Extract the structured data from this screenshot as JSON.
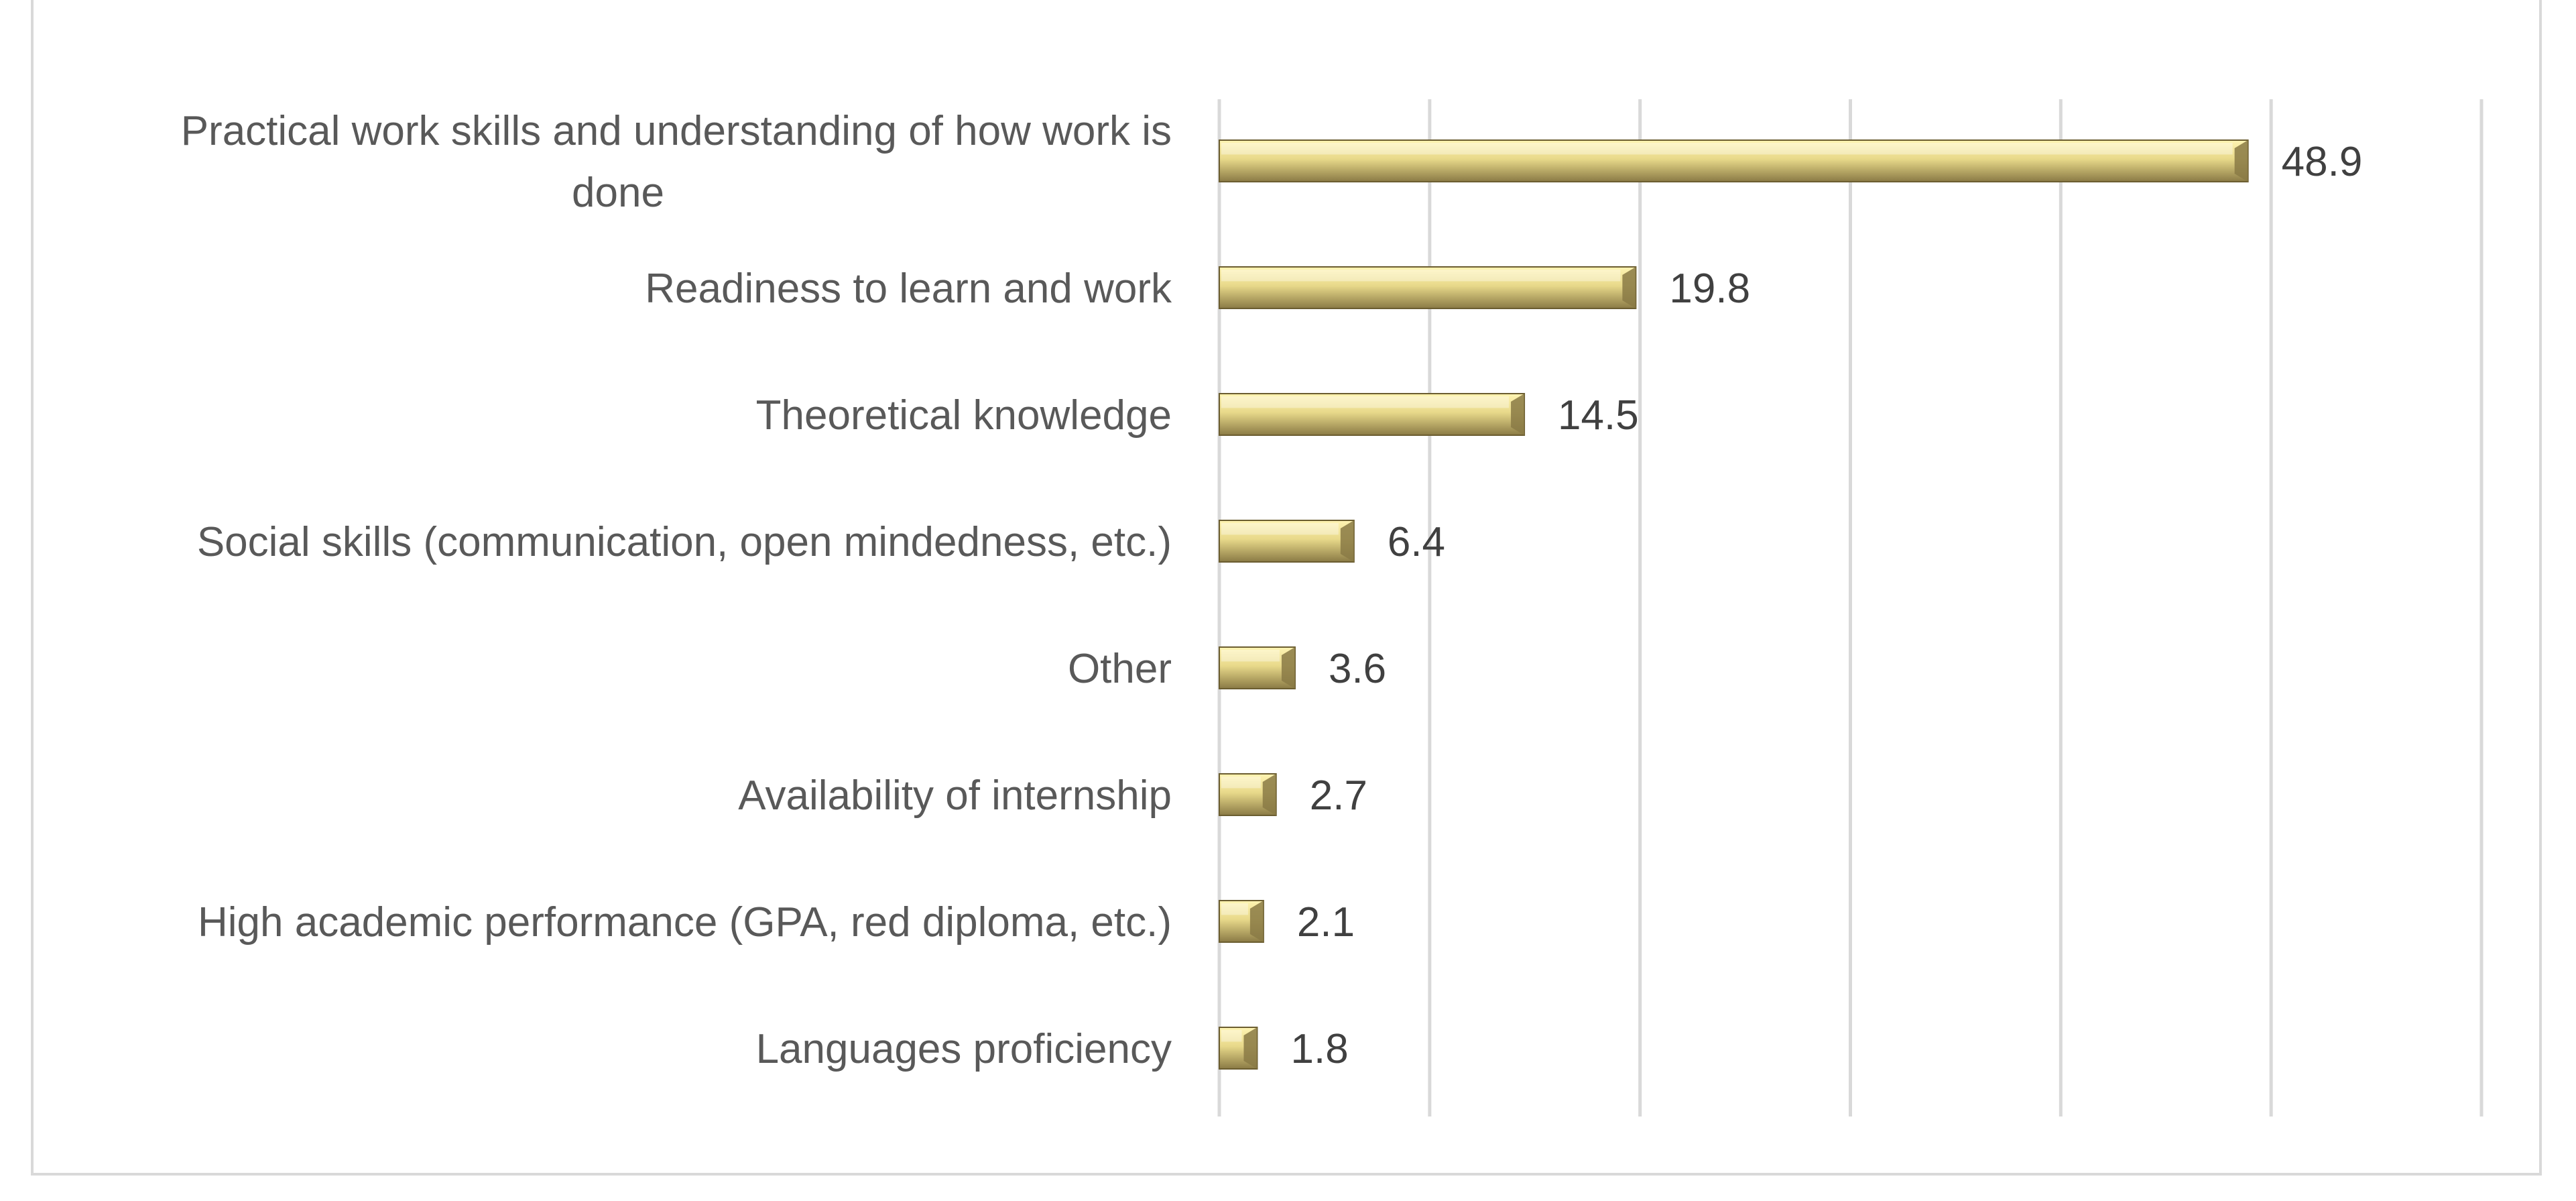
{
  "chart_data": {
    "type": "bar",
    "orientation": "horizontal",
    "categories": [
      "Practical work skills and understanding of how work is done",
      "Readiness to learn and work",
      "Theoretical knowledge",
      "Social skills (communication, open mindedness, etc.)",
      "Other",
      "Availability of internship",
      "High academic performance (GPA, red diploma, etc.)",
      "Languages proficiency"
    ],
    "category_lines": [
      [
        "Practical work skills and understanding of how work is",
        "done"
      ],
      [
        "Readiness to learn and work"
      ],
      [
        "Theoretical knowledge"
      ],
      [
        "Social skills (communication, open mindedness, etc.)"
      ],
      [
        "Other"
      ],
      [
        "Availability of internship"
      ],
      [
        "High academic performance (GPA, red diploma, etc.)"
      ],
      [
        "Languages proficiency"
      ]
    ],
    "values": [
      48.9,
      19.8,
      14.5,
      6.4,
      3.6,
      2.7,
      2.1,
      1.8
    ],
    "value_labels": [
      "48.9",
      "19.8",
      "14.5",
      "6.4",
      "3.6",
      "2.7",
      "2.1",
      "1.8"
    ],
    "xlim": [
      0,
      60
    ],
    "major_unit": 10,
    "grid": true,
    "show_tick_labels": false,
    "legend": "none",
    "title": "",
    "xlabel": "",
    "ylabel": "",
    "bar_colors": {
      "light": "#fff5b3",
      "mid": "#e8d98a",
      "dark": "#8a7a45",
      "edge": "#6b5d30"
    },
    "gridline_color": "#d9d9d9",
    "label_color": "#595959",
    "value_color": "#404040"
  }
}
